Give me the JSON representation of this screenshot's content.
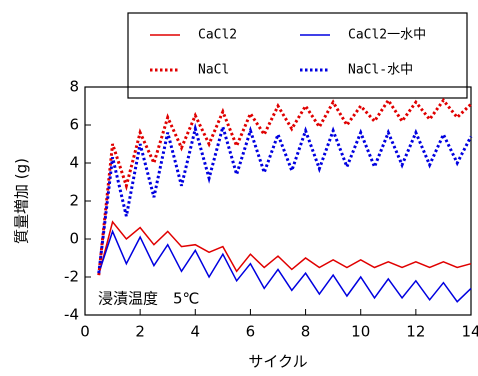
{
  "chart_data": {
    "type": "line",
    "x_label": "サイクル",
    "y_label": "質量増加 (g)",
    "annotation": "浸漬温度　5℃",
    "x": [
      0.5,
      1,
      1.5,
      2,
      2.5,
      3,
      3.5,
      4,
      4.5,
      5,
      5.5,
      6,
      6.5,
      7,
      7.5,
      8,
      8.5,
      9,
      9.5,
      10,
      10.5,
      11,
      11.5,
      12,
      12.5,
      13,
      13.5,
      14
    ],
    "series": [
      {
        "name": "CaCl2",
        "color": "#e00000",
        "style": "solid",
        "values": [
          -1.9,
          0.9,
          0.0,
          0.6,
          -0.3,
          0.4,
          -0.4,
          -0.3,
          -0.7,
          -0.4,
          -1.7,
          -0.8,
          -1.5,
          -0.9,
          -1.6,
          -1.0,
          -1.5,
          -1.1,
          -1.5,
          -1.1,
          -1.5,
          -1.2,
          -1.5,
          -1.2,
          -1.5,
          -1.2,
          -1.5,
          -1.3
        ]
      },
      {
        "name": "CaCl2一水中",
        "color": "#0000e0",
        "style": "solid",
        "values": [
          -1.8,
          0.4,
          -1.3,
          0.1,
          -1.4,
          -0.3,
          -1.7,
          -0.6,
          -2.0,
          -0.8,
          -2.2,
          -1.3,
          -2.6,
          -1.6,
          -2.7,
          -1.8,
          -2.9,
          -1.9,
          -3.0,
          -2.0,
          -3.1,
          -2.1,
          -3.1,
          -2.2,
          -3.2,
          -2.3,
          -3.3,
          -2.6
        ]
      },
      {
        "name": "NaCl",
        "color": "#e00000",
        "style": "dotted",
        "values": [
          -1.9,
          5.0,
          2.8,
          5.6,
          4.0,
          6.4,
          4.8,
          6.5,
          5.0,
          6.7,
          4.9,
          6.6,
          5.5,
          7.0,
          5.8,
          7.0,
          5.9,
          7.2,
          6.0,
          7.0,
          6.2,
          7.3,
          6.2,
          7.2,
          6.3,
          7.3,
          6.4,
          7.1
        ]
      },
      {
        "name": "NaCl-水中",
        "color": "#0000e0",
        "style": "dotted",
        "values": [
          -1.8,
          4.3,
          1.2,
          5.0,
          2.2,
          5.6,
          2.8,
          5.8,
          3.2,
          5.9,
          3.4,
          5.7,
          3.5,
          5.5,
          3.6,
          5.7,
          3.7,
          5.7,
          3.8,
          5.6,
          3.8,
          5.6,
          3.9,
          5.6,
          3.9,
          5.5,
          4.0,
          5.4
        ]
      }
    ],
    "xlim": [
      0,
      14
    ],
    "xticks": [
      0,
      2,
      4,
      6,
      8,
      10,
      12,
      14
    ],
    "ylim": [
      -4,
      8
    ],
    "yticks": [
      -4,
      -2,
      0,
      2,
      4,
      6,
      8
    ]
  }
}
